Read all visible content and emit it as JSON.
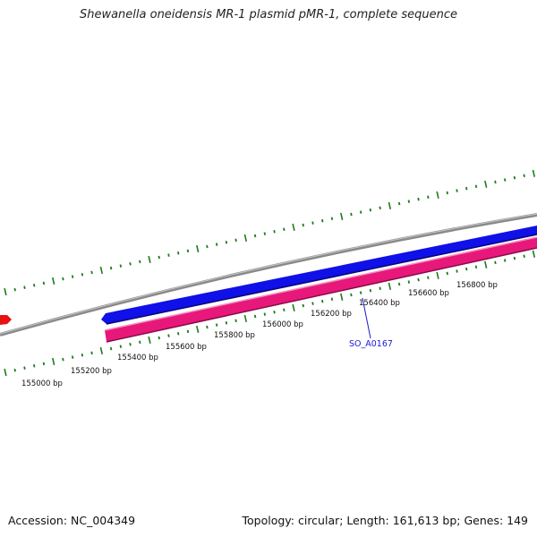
{
  "title": "Shewanella oneidensis MR-1 plasmid pMR-1, complete sequence",
  "footer": {
    "accession": "Accession: NC_004349",
    "summary": "Topology: circular; Length: 161,613 bp; Genes: 149"
  },
  "colors": {
    "backbone": "#8a8a8a",
    "forward_gene": "#1010e8",
    "reverse_gene": "#e8187a",
    "other_feature": "#e81010",
    "ticks": "#1e7a1e",
    "gene_label": "#1a1ad0"
  },
  "scale_labels": [
    "155000 bp",
    "155200 bp",
    "155400 bp",
    "155600 bp",
    "155800 bp",
    "156000 bp",
    "156200 bp",
    "156400 bp",
    "156600 bp",
    "156800 bp"
  ],
  "gene_labels": [
    {
      "text": "SO_A0167"
    }
  ]
}
